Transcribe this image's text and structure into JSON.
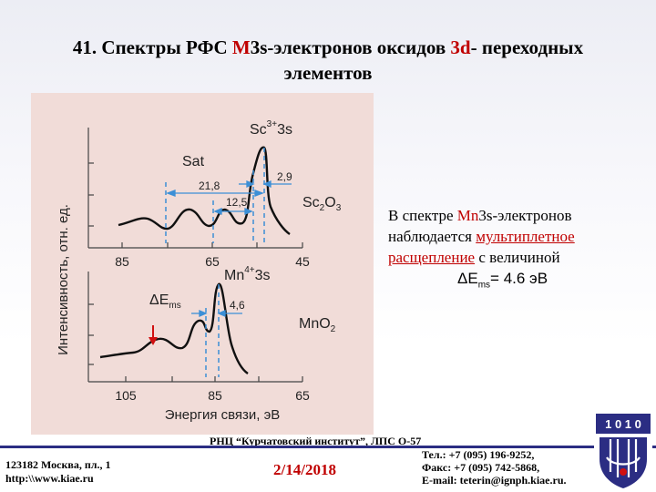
{
  "title": {
    "number": "41. Спектры РФС ",
    "m": "M",
    "mid": "3s-электронов оксидов ",
    "d": "3d",
    "end": "- переходных",
    "line2": "элементов"
  },
  "figure": {
    "ylabel": "Интенсивность, отн. ед.",
    "xlabel": "Энергия связи, эВ",
    "top": {
      "label_sat": "Sat",
      "label_main": "Sc",
      "label_main_sup": "3+",
      "label_main_end": "3s",
      "label_oxide": "Sc",
      "label_oxide_sub1": "2",
      "label_oxide_o": "O",
      "label_oxide_sub2": "3",
      "dim_1": "21,8",
      "dim_2": "12,5",
      "dim_3": "2,9",
      "ticks": [
        "85",
        "65",
        "45"
      ]
    },
    "bottom": {
      "label_main": "Mn",
      "label_main_sup": "4+",
      "label_main_end": "3s",
      "label_delta": "ΔE",
      "label_delta_sub": "ms",
      "dim": "4,6",
      "label_oxide": "MnO",
      "label_oxide_sub": "2",
      "ticks": [
        "105",
        "85",
        "65"
      ]
    }
  },
  "note": {
    "l1a": "В спектре ",
    "l1b": "Mn",
    "l1c": "3s-электронов",
    "l2a": "наблюдается ",
    "l2b": "мультиплетное",
    "l3a": "расщепление",
    "l3b": " с величиной",
    "l4a": "ΔE",
    "l4b": "ms",
    "l4c": "= 4.6 эВ"
  },
  "footer": {
    "center": "РНЦ “Курчатовский институт”,  ЛПС О-57",
    "addr1": "123182 Москва, пл., 1",
    "addr2": "http:\\\\www.kiae.ru",
    "date": "2/14/2018",
    "tel": "Тел.:    +7 (095) 196-9252,",
    "fax": "Факс:  +7 (095) 742-5868,",
    "email": "E-mail: teterin@ignph.kiae.ru.",
    "logo_text": "1 0 1 0"
  },
  "colors": {
    "accent_red": "#c00000",
    "footer_blue": "#2b2d83",
    "dim_blue": "#3c8fd6"
  }
}
